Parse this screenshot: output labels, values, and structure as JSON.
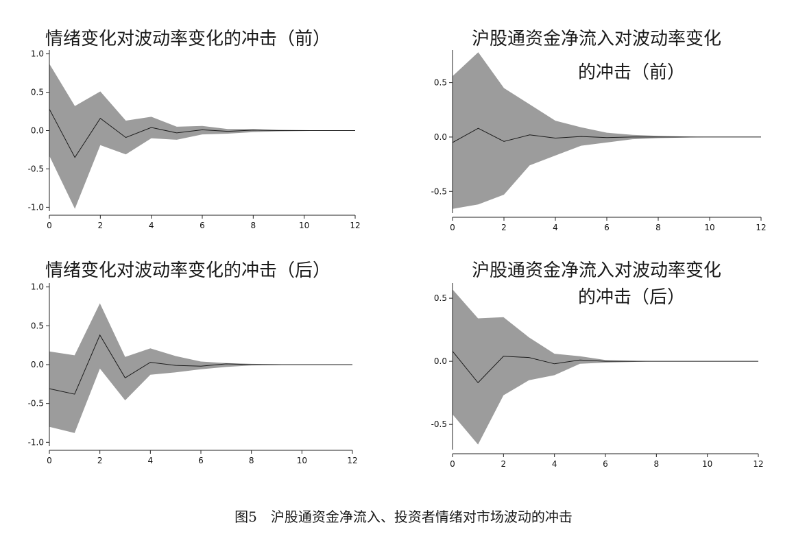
{
  "caption": "图5　沪股通资金净流入、投资者情绪对市场波动的冲击",
  "colors": {
    "band": "#9c9c9c",
    "line": "#1a1a1a",
    "axis": "#222222"
  },
  "chart_data": [
    {
      "type": "area",
      "title_lines": [
        "情绪变化对波动率变化的冲击（前）"
      ],
      "x": [
        0,
        1,
        2,
        3,
        4,
        5,
        6,
        7,
        8,
        9,
        10,
        11,
        12
      ],
      "xticks": [
        "0",
        "2",
        "4",
        "6",
        "8",
        "10",
        "12"
      ],
      "xlim": [
        0,
        12
      ],
      "ylim": [
        -1.05,
        1.05
      ],
      "yticks": [
        "1.0",
        "0.5",
        "0.0",
        "-0.5",
        "-1.0"
      ],
      "series": [
        {
          "role": "irf",
          "values": [
            0.28,
            -0.35,
            0.16,
            -0.09,
            0.04,
            -0.03,
            0.01,
            -0.01,
            0.005,
            0,
            0,
            0,
            0
          ]
        },
        {
          "role": "upper",
          "values": [
            0.87,
            0.32,
            0.51,
            0.13,
            0.18,
            0.05,
            0.06,
            0.02,
            0.02,
            0.01,
            0.005,
            0,
            0
          ]
        },
        {
          "role": "lower",
          "values": [
            -0.33,
            -1.02,
            -0.19,
            -0.31,
            -0.1,
            -0.12,
            -0.05,
            -0.04,
            -0.02,
            -0.01,
            -0.005,
            0,
            0
          ]
        }
      ]
    },
    {
      "type": "area",
      "title_lines": [
        "沪股通资金净流入对波动率变化",
        "的冲击（前）"
      ],
      "x": [
        0,
        1,
        2,
        3,
        4,
        5,
        6,
        7,
        8,
        9,
        10,
        11,
        12
      ],
      "xticks": [
        "0",
        "2",
        "4",
        "6",
        "8",
        "10",
        "12"
      ],
      "xlim": [
        0,
        12
      ],
      "ylim": [
        -0.7,
        0.8
      ],
      "yticks": [
        "0.5",
        "0.0",
        "-0.5"
      ],
      "series": [
        {
          "role": "irf",
          "values": [
            -0.05,
            0.08,
            -0.04,
            0.02,
            -0.01,
            0.005,
            -0.005,
            0,
            0,
            0,
            0,
            0,
            0
          ]
        },
        {
          "role": "upper",
          "values": [
            0.56,
            0.78,
            0.45,
            0.3,
            0.15,
            0.09,
            0.04,
            0.02,
            0.01,
            0.005,
            0,
            0,
            0
          ]
        },
        {
          "role": "lower",
          "values": [
            -0.66,
            -0.62,
            -0.53,
            -0.26,
            -0.17,
            -0.08,
            -0.05,
            -0.02,
            -0.01,
            -0.005,
            0,
            0,
            0
          ]
        }
      ]
    },
    {
      "type": "area",
      "title_lines": [
        "情绪变化对波动率变化的冲击（后）"
      ],
      "x": [
        0,
        1,
        2,
        3,
        4,
        5,
        6,
        7,
        8,
        9,
        10,
        11,
        12
      ],
      "xticks": [
        "0",
        "2",
        "4",
        "6",
        "8",
        "10",
        "12"
      ],
      "xlim": [
        0,
        12
      ],
      "ylim": [
        -1.05,
        1.05
      ],
      "yticks": [
        "1.0",
        "0.5",
        "0.0",
        "-0.5",
        "-1.0"
      ],
      "series": [
        {
          "role": "irf",
          "values": [
            -0.31,
            -0.38,
            0.38,
            -0.17,
            0.03,
            -0.01,
            -0.02,
            0.01,
            0,
            0,
            0,
            0,
            0
          ]
        },
        {
          "role": "upper",
          "values": [
            0.17,
            0.12,
            0.79,
            0.1,
            0.21,
            0.11,
            0.04,
            0.02,
            0.01,
            0.005,
            0,
            0,
            0
          ]
        },
        {
          "role": "lower",
          "values": [
            -0.8,
            -0.88,
            -0.05,
            -0.46,
            -0.13,
            -0.1,
            -0.06,
            -0.03,
            -0.01,
            -0.005,
            0,
            0,
            0
          ]
        }
      ]
    },
    {
      "type": "area",
      "title_lines": [
        "沪股通资金净流入对波动率变化",
        "的冲击（后）"
      ],
      "x": [
        0,
        1,
        2,
        3,
        4,
        5,
        6,
        7,
        8,
        9,
        10,
        11,
        12
      ],
      "xticks": [
        "0",
        "2",
        "4",
        "6",
        "8",
        "10",
        "12"
      ],
      "xlim": [
        0,
        12
      ],
      "ylim": [
        -0.7,
        0.62
      ],
      "yticks": [
        "0.5",
        "0.0",
        "-0.5"
      ],
      "series": [
        {
          "role": "irf",
          "values": [
            0.08,
            -0.17,
            0.04,
            0.03,
            -0.02,
            0.01,
            0,
            0,
            0,
            0,
            0,
            0,
            0
          ]
        },
        {
          "role": "upper",
          "values": [
            0.57,
            0.34,
            0.35,
            0.19,
            0.06,
            0.04,
            0.01,
            0.005,
            0,
            0,
            0,
            0,
            0
          ]
        },
        {
          "role": "lower",
          "values": [
            -0.42,
            -0.66,
            -0.27,
            -0.15,
            -0.11,
            -0.02,
            -0.01,
            -0.005,
            0,
            0,
            0,
            0,
            0
          ]
        }
      ]
    }
  ]
}
